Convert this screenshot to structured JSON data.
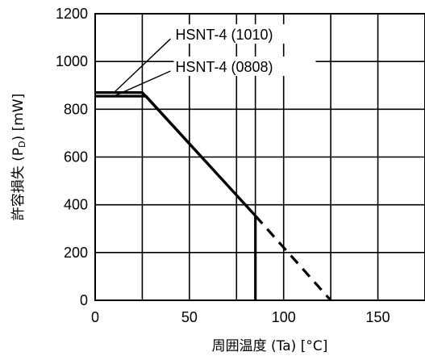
{
  "chart_data": {
    "type": "line",
    "xlabel": "周囲温度 (Ta) [°C]",
    "ylabel_main": "許容損失 (P",
    "ylabel_sub": "D",
    "ylabel_tail": ") [mW]",
    "xlim": [
      0,
      175
    ],
    "ylim": [
      0,
      1200
    ],
    "x_ticks": [
      0,
      50,
      100,
      150
    ],
    "x_tick_labels": [
      "0",
      "50",
      "100",
      "150"
    ],
    "y_ticks": [
      0,
      200,
      400,
      600,
      800,
      1000,
      1200
    ],
    "y_tick_labels": [
      "0",
      "200",
      "400",
      "600",
      "800",
      "1000",
      "1200"
    ],
    "x_grid": [
      25,
      50,
      75,
      85,
      100,
      125,
      150
    ],
    "y_grid": [
      200,
      400,
      600,
      800,
      1000
    ],
    "series": [
      {
        "name": "HSNT-4 (1010)",
        "points": [
          [
            0,
            870
          ],
          [
            25,
            870
          ],
          [
            85,
            354
          ]
        ],
        "dashed_points": [
          [
            85,
            354
          ],
          [
            125,
            0
          ]
        ],
        "drop_points": [
          [
            85,
            354
          ],
          [
            85,
            0
          ]
        ]
      },
      {
        "name": "HSNT-4 (0808)",
        "points": [
          [
            0,
            855
          ],
          [
            27,
            855
          ],
          [
            85,
            354
          ]
        ]
      }
    ],
    "annotations": [
      {
        "label": "HSNT-4 (1010)",
        "series": 0,
        "pointer_from": [
          40,
          1095
        ],
        "pointer_to": [
          10,
          870
        ]
      },
      {
        "label": "HSNT-4 (0808)",
        "series": 1,
        "pointer_from": [
          40,
          960
        ],
        "pointer_to": [
          10,
          855
        ]
      }
    ]
  },
  "colors": {
    "line": "#000000",
    "grid": "#000000",
    "background": "#ffffff"
  }
}
